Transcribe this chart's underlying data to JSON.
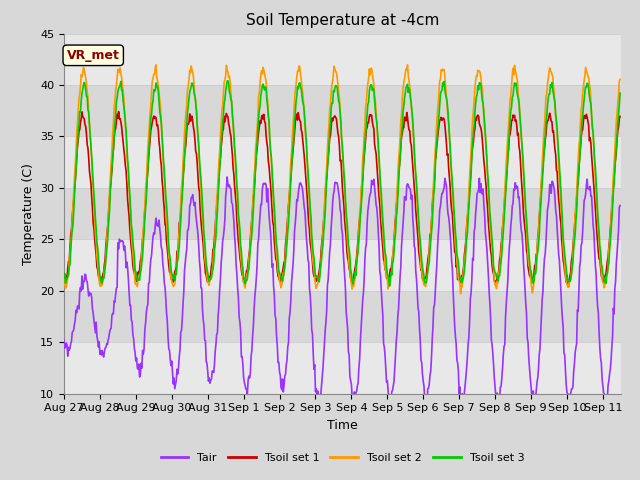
{
  "title": "Soil Temperature at -4cm",
  "xlabel": "Time",
  "ylabel": "Temperature (C)",
  "ylim": [
    10,
    45
  ],
  "xlim_days": 15.5,
  "annotation": "VR_met",
  "fig_bg_color": "#d8d8d8",
  "plot_bg_color": "#e8e8e8",
  "band_colors": [
    "#e8e8e8",
    "#d8d8d8"
  ],
  "grid_line_color": "#cccccc",
  "series": {
    "Tair": {
      "color": "#9933ff",
      "linewidth": 1.2
    },
    "Tsoil set 1": {
      "color": "#cc0000",
      "linewidth": 1.2
    },
    "Tsoil set 2": {
      "color": "#ff9900",
      "linewidth": 1.2
    },
    "Tsoil set 3": {
      "color": "#00cc00",
      "linewidth": 1.2
    }
  },
  "xtick_labels": [
    "Aug 27",
    "Aug 28",
    "Aug 29",
    "Aug 30",
    "Aug 31",
    "Sep 1",
    "Sep 2",
    "Sep 3",
    "Sep 4",
    "Sep 5",
    "Sep 6",
    "Sep 7",
    "Sep 8",
    "Sep 9",
    "Sep 10",
    "Sep 11"
  ],
  "ytick_vals": [
    10,
    15,
    20,
    25,
    30,
    35,
    40,
    45
  ],
  "title_fontsize": 11,
  "axis_label_fontsize": 9,
  "tick_fontsize": 8
}
